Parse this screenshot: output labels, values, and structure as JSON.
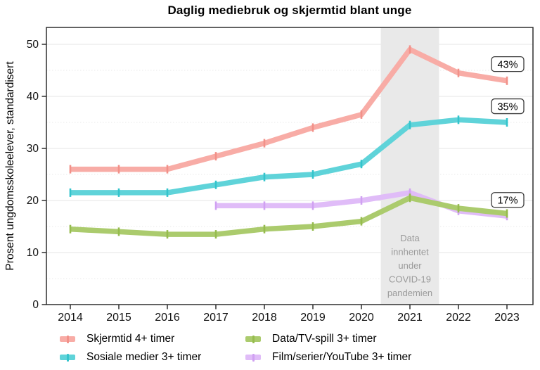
{
  "title": "Daglig mediebruk og skjermtid blant unge",
  "chart_data": {
    "type": "line",
    "x": [
      2014,
      2015,
      2016,
      2017,
      2018,
      2019,
      2020,
      2021,
      2022,
      2023
    ],
    "series": [
      {
        "name": "Skjermtid 4+ timer",
        "color": "#F8ACA6",
        "marker_color": "#F29189",
        "values": [
          26,
          26,
          26,
          28.5,
          31,
          34,
          36.5,
          49,
          44.5,
          43
        ]
      },
      {
        "name": "Sosiale medier 3+ timer",
        "color": "#5FD3D9",
        "marker_color": "#33C4CC",
        "values": [
          21.5,
          21.5,
          21.5,
          23,
          24.5,
          25,
          27,
          34.5,
          35.5,
          35
        ]
      },
      {
        "name": "Data/TV-spill 3+ timer",
        "color": "#ABCB6D",
        "marker_color": "#96BC4E",
        "values": [
          14.5,
          14,
          13.5,
          13.5,
          14.5,
          15,
          16,
          20.5,
          18.5,
          17.5
        ]
      },
      {
        "name": "Film/serier/YouTube 3+ timer",
        "color": "#E0BCF8",
        "marker_color": "#D0A1F2",
        "values": [
          null,
          null,
          null,
          19,
          19,
          19,
          20,
          21.5,
          18,
          17
        ]
      }
    ],
    "ylabel": "Prosent ungdomsskoleelever, standardisert",
    "xlabel": "",
    "ylim": [
      0,
      53
    ],
    "yticks": [
      0,
      10,
      20,
      30,
      40,
      50
    ],
    "yticks_minor": [
      5,
      15,
      25,
      35,
      45
    ],
    "grid": "horizontal-major-solid-minor-dotted",
    "legend_position": "bottom-two-columns",
    "annotations": [
      {
        "label": "43%",
        "value_y": 46.2,
        "series": "Skjermtid 4+ timer"
      },
      {
        "label": "35%",
        "value_y": 38.1,
        "series": "Sosiale medier 3+ timer"
      },
      {
        "label": "17%",
        "value_y": 20.1,
        "series": "Data/TV-spill og Film/serier/YouTube"
      }
    ],
    "covid_band": {
      "x_from": 2020.4,
      "x_to": 2021.6,
      "label_lines": [
        "Data",
        "innhentet",
        "under",
        "COVID-19",
        "pandemien"
      ]
    }
  }
}
